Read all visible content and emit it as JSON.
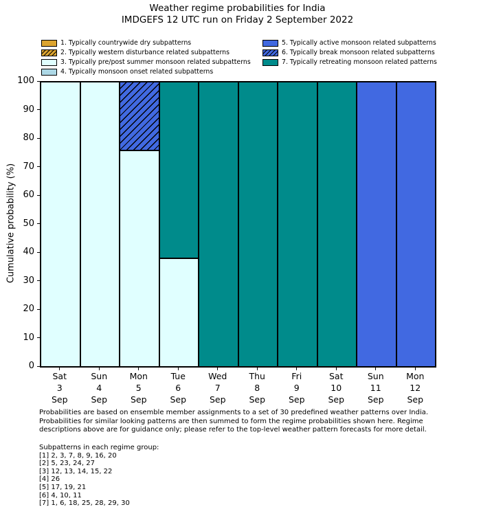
{
  "title": "Weather regime probabilities for India",
  "subtitle": "IMDGEFS 12 UTC run on Friday 2 September 2022",
  "legend": {
    "items": [
      {
        "label": "1. Typically countrywide dry subpatterns",
        "color": "#DCA42F",
        "hatch": false,
        "column": 0
      },
      {
        "label": "2. Typically western disturbance related subpatterns",
        "color": "#DCA42F",
        "hatch": true,
        "column": 0
      },
      {
        "label": "3. Typically pre/post summer monsoon related subpatterns",
        "color": "#E0FFFF",
        "hatch": false,
        "column": 0
      },
      {
        "label": "4. Typically monsoon onset related subpatterns",
        "color": "#ADD8E6",
        "hatch": false,
        "column": 0
      },
      {
        "label": "5. Typically active monsoon related subpatterns",
        "color": "#4169E1",
        "hatch": false,
        "column": 1
      },
      {
        "label": "6. Typically break monsoon related subpatterns",
        "color": "#4169E1",
        "hatch": true,
        "column": 1
      },
      {
        "label": "7. Typically retreating monsoon related patterns",
        "color": "#008B8B",
        "hatch": false,
        "column": 1
      }
    ]
  },
  "chart_data": {
    "type": "bar",
    "stacked": true,
    "title": "Weather regime probabilities for India",
    "subtitle": "IMDGEFS 12 UTC run on Friday 2 September 2022",
    "ylabel": "Cumulative probability (%)",
    "xlabel": "",
    "ylim": [
      0,
      100
    ],
    "yticks": [
      0,
      10,
      20,
      30,
      40,
      50,
      60,
      70,
      80,
      90,
      100
    ],
    "grid": false,
    "legend_position": "top",
    "categories": [
      {
        "day": "Sat",
        "date": "3",
        "month": "Sep"
      },
      {
        "day": "Sun",
        "date": "4",
        "month": "Sep"
      },
      {
        "day": "Mon",
        "date": "5",
        "month": "Sep"
      },
      {
        "day": "Tue",
        "date": "6",
        "month": "Sep"
      },
      {
        "day": "Wed",
        "date": "7",
        "month": "Sep"
      },
      {
        "day": "Thu",
        "date": "8",
        "month": "Sep"
      },
      {
        "day": "Fri",
        "date": "9",
        "month": "Sep"
      },
      {
        "day": "Sat",
        "date": "10",
        "month": "Sep"
      },
      {
        "day": "Sun",
        "date": "11",
        "month": "Sep"
      },
      {
        "day": "Mon",
        "date": "12",
        "month": "Sep"
      }
    ],
    "series": [
      {
        "name": "3. Typically pre/post summer monsoon related subpatterns",
        "regime": 3,
        "color": "#E0FFFF",
        "hatch": false,
        "values": [
          100,
          100,
          76,
          38,
          0,
          0,
          0,
          0,
          0,
          0
        ]
      },
      {
        "name": "6. Typically break monsoon related subpatterns",
        "regime": 6,
        "color": "#4169E1",
        "hatch": true,
        "values": [
          0,
          0,
          24,
          0,
          0,
          0,
          0,
          0,
          0,
          0
        ]
      },
      {
        "name": "7. Typically retreating monsoon related patterns",
        "regime": 7,
        "color": "#008B8B",
        "hatch": false,
        "values": [
          0,
          0,
          0,
          62,
          100,
          100,
          100,
          100,
          0,
          0
        ]
      },
      {
        "name": "5. Typically active monsoon related subpatterns",
        "regime": 5,
        "color": "#4169E1",
        "hatch": false,
        "values": [
          0,
          0,
          0,
          0,
          0,
          0,
          0,
          0,
          100,
          100
        ]
      }
    ]
  },
  "footer": {
    "lines": [
      "Probabilities are based on ensemble member assignments to a set of 30 predefined weather patterns over India.",
      "Probabilities for similar looking patterns are then summed to form the regime probabilities shown here. Regime",
      "descriptions above are for guidance only; please refer to the top-level weather pattern forecasts for more detail."
    ]
  },
  "subpatterns": {
    "heading": "Subpatterns in each regime group:",
    "groups": [
      "[1] 2, 3, 7, 8, 9, 16, 20",
      "[2] 5, 23, 24, 27",
      "[3] 12, 13, 14, 15, 22",
      "[4] 26",
      "[5] 17, 19, 21",
      "[6] 4, 10, 11",
      "[7] 1, 6, 18, 25, 28, 29, 30"
    ]
  }
}
